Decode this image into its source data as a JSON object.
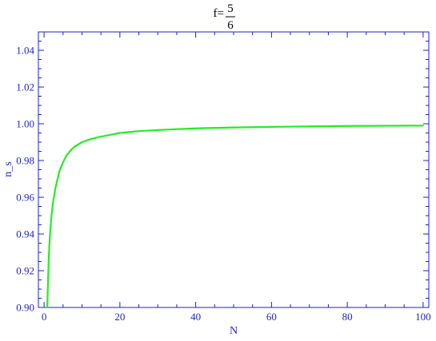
{
  "chart_data": {
    "type": "line",
    "title": {
      "prefix": "f=",
      "numerator": "5",
      "denominator": "6"
    },
    "xlabel": "N",
    "ylabel": "n_s",
    "xlim": [
      -1.5,
      101.5
    ],
    "ylim": [
      0.9,
      1.05
    ],
    "x_ticks": [
      0,
      20,
      40,
      60,
      80,
      100
    ],
    "x_tick_labels": [
      "0",
      "20",
      "40",
      "60",
      "80",
      "100"
    ],
    "y_ticks": [
      0.9,
      0.92,
      0.94,
      0.96,
      0.98,
      1.0,
      1.02,
      1.04
    ],
    "y_tick_labels": [
      "0.90",
      "0.92",
      "0.94",
      "0.96",
      "0.98",
      "1.00",
      "1.02",
      "1.04"
    ],
    "grid": false,
    "series": [
      {
        "color": "#22ee22",
        "x": [
          0.85,
          1,
          1.2,
          1.5,
          2,
          2.5,
          3,
          4,
          5,
          6,
          7,
          8,
          10,
          12,
          15,
          20,
          25,
          30,
          40,
          50,
          60,
          70,
          80,
          90,
          100
        ],
        "y": [
          0.9,
          0.912,
          0.925,
          0.938,
          0.951,
          0.959,
          0.965,
          0.974,
          0.979,
          0.983,
          0.9855,
          0.9875,
          0.99,
          0.9915,
          0.993,
          0.995,
          0.996,
          0.9966,
          0.9975,
          0.998,
          0.9983,
          0.9986,
          0.9988,
          0.9989,
          0.999
        ]
      }
    ],
    "colors": {
      "axis": "#1f1fcf",
      "title": "#000000"
    }
  }
}
